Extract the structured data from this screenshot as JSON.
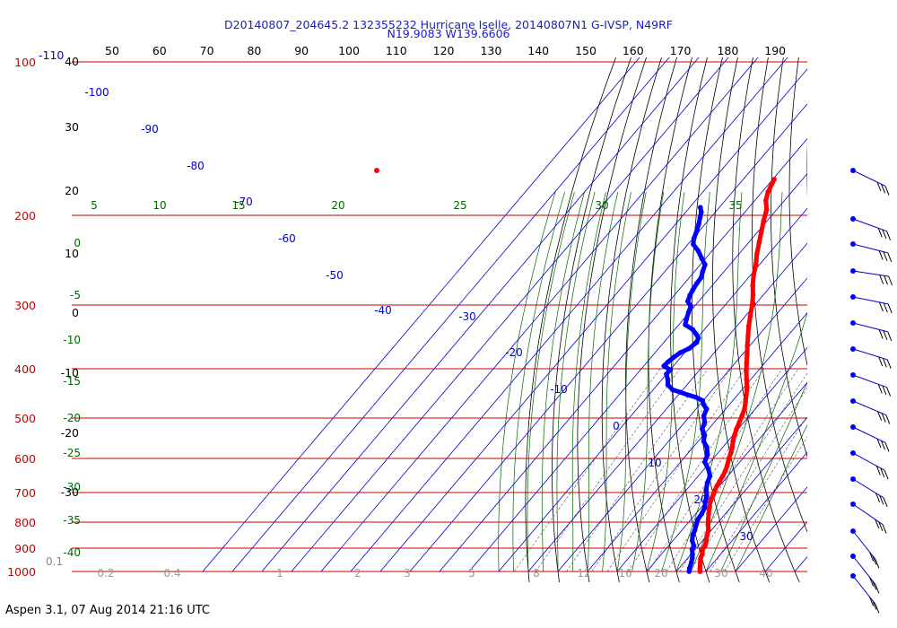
{
  "header": {
    "line1": "D20140807_204645.2 132355232 Hurricane Iselle, 20140807N1 G-IVSP, N49RF",
    "line2": "N19.9083 W139.6606"
  },
  "footer": {
    "text": "Aspen 3.1, 07 Aug 2014  21:16 UTC"
  },
  "colors": {
    "temperature": "#ff0000",
    "dewpoint": "#0000ff",
    "isobar": "#cc0000",
    "isotherm": "#0000cc",
    "dry_adiabat": "#000000",
    "moist_adiabat": "#006600",
    "mixing_ratio": "#555555"
  },
  "chart_data": {
    "type": "line",
    "kind": "skew-T log-P thermodynamic diagram",
    "pressure_ticks": [
      "100",
      "200",
      "300",
      "400",
      "500",
      "600",
      "700",
      "800",
      "900",
      "1000"
    ],
    "top_scale_ticks": [
      "50",
      "60",
      "70",
      "80",
      "90",
      "100",
      "110",
      "120",
      "130",
      "140",
      "150",
      "160",
      "170",
      "180",
      "190"
    ],
    "top_left_label": "-110",
    "left_altitude_ticks": [
      "40",
      "30",
      "20",
      "10",
      "0",
      "-10",
      "-20",
      "-30"
    ],
    "left_moist_ticks": [
      "0",
      "-5",
      "-10",
      "-15",
      "-20",
      "-25",
      "-30",
      "-35",
      "-40"
    ],
    "bottom_left_label": "0.1",
    "isotherm_labels": [
      "-100",
      "-90",
      "-80",
      "-70",
      "-60",
      "-50",
      "-40",
      "-30",
      "-20",
      "-10",
      "0",
      "10",
      "20",
      "30"
    ],
    "moist_adiabat_labels": [
      "5",
      "10",
      "15",
      "20",
      "25",
      "30",
      "35"
    ],
    "mixing_ratio_labels": [
      "0.2",
      "0.4",
      "1",
      "2",
      "3",
      "5",
      "8",
      "12",
      "16",
      "20",
      "30",
      "40"
    ],
    "series": [
      {
        "role": "temperature",
        "unit": "C",
        "points": [
          [
            1000,
            28.0
          ],
          [
            985,
            27.0
          ],
          [
            960,
            25.5
          ],
          [
            940,
            24.3
          ],
          [
            925,
            23.8
          ],
          [
            905,
            22.5
          ],
          [
            890,
            22.3
          ],
          [
            870,
            21.3
          ],
          [
            850,
            20.0
          ],
          [
            830,
            19.0
          ],
          [
            810,
            17.3
          ],
          [
            790,
            15.8
          ],
          [
            770,
            14.3
          ],
          [
            750,
            12.9
          ],
          [
            730,
            11.5
          ],
          [
            710,
            10.6
          ],
          [
            695,
            9.8
          ],
          [
            680,
            9.2
          ],
          [
            665,
            8.7
          ],
          [
            650,
            8.3
          ],
          [
            635,
            7.7
          ],
          [
            620,
            6.8
          ],
          [
            600,
            5.3
          ],
          [
            585,
            4.4
          ],
          [
            570,
            3.2
          ],
          [
            555,
            1.7
          ],
          [
            540,
            0.5
          ],
          [
            525,
            -0.6
          ],
          [
            510,
            -1.5
          ],
          [
            495,
            -2.5
          ],
          [
            480,
            -3.6
          ],
          [
            465,
            -5.3
          ],
          [
            450,
            -7.1
          ],
          [
            435,
            -9.0
          ],
          [
            420,
            -11.4
          ],
          [
            405,
            -13.8
          ],
          [
            390,
            -16.1
          ],
          [
            375,
            -18.4
          ],
          [
            360,
            -20.9
          ],
          [
            345,
            -23.4
          ],
          [
            330,
            -26.0
          ],
          [
            315,
            -28.4
          ],
          [
            300,
            -30.9
          ],
          [
            287,
            -33.4
          ],
          [
            275,
            -36.2
          ],
          [
            262,
            -39.0
          ],
          [
            250,
            -41.2
          ],
          [
            238,
            -44.0
          ],
          [
            226,
            -46.5
          ],
          [
            215,
            -48.9
          ],
          [
            205,
            -51.2
          ],
          [
            195,
            -53.4
          ],
          [
            187,
            -56.3
          ],
          [
            180,
            -58.0
          ],
          [
            170,
            -59.5
          ]
        ]
      },
      {
        "role": "dewpoint",
        "unit": "C",
        "points": [
          [
            1000,
            24.3
          ],
          [
            985,
            23.5
          ],
          [
            960,
            22.5
          ],
          [
            940,
            21.5
          ],
          [
            925,
            20.5
          ],
          [
            905,
            19.0
          ],
          [
            890,
            18.5
          ],
          [
            870,
            16.5
          ],
          [
            850,
            15.2
          ],
          [
            830,
            14.4
          ],
          [
            810,
            13.3
          ],
          [
            790,
            12.3
          ],
          [
            770,
            12.0
          ],
          [
            750,
            11.3
          ],
          [
            730,
            9.8
          ],
          [
            710,
            8.5
          ],
          [
            690,
            6.5
          ],
          [
            670,
            5.0
          ],
          [
            650,
            4.0
          ],
          [
            630,
            1.5
          ],
          [
            610,
            -1.8
          ],
          [
            590,
            -3.0
          ],
          [
            570,
            -5.4
          ],
          [
            555,
            -8.2
          ],
          [
            540,
            -9.6
          ],
          [
            525,
            -12.2
          ],
          [
            510,
            -13.2
          ],
          [
            495,
            -15.4
          ],
          [
            480,
            -16.4
          ],
          [
            470,
            -18.8
          ],
          [
            462,
            -20.2
          ],
          [
            455,
            -23.4
          ],
          [
            450,
            -27.0
          ],
          [
            445,
            -30.0
          ],
          [
            440,
            -33.4
          ],
          [
            430,
            -36.5
          ],
          [
            420,
            -38.0
          ],
          [
            410,
            -40.0
          ],
          [
            402,
            -40.0
          ],
          [
            395,
            -43.2
          ],
          [
            388,
            -43.0
          ],
          [
            380,
            -42.4
          ],
          [
            372,
            -41.5
          ],
          [
            365,
            -39.7
          ],
          [
            355,
            -38.9
          ],
          [
            348,
            -39.6
          ],
          [
            342,
            -41.5
          ],
          [
            335,
            -44.0
          ],
          [
            328,
            -47.8
          ],
          [
            320,
            -49.0
          ],
          [
            310,
            -50.3
          ],
          [
            302,
            -51.2
          ],
          [
            295,
            -53.7
          ],
          [
            287,
            -54.7
          ],
          [
            280,
            -55.3
          ],
          [
            272,
            -55.8
          ],
          [
            265,
            -56.0
          ],
          [
            258,
            -57.2
          ],
          [
            250,
            -58.4
          ],
          [
            243,
            -61.3
          ],
          [
            235,
            -64.6
          ],
          [
            228,
            -68.2
          ],
          [
            222,
            -69.7
          ],
          [
            215,
            -70.8
          ],
          [
            208,
            -72.2
          ],
          [
            202,
            -73.6
          ],
          [
            197,
            -74.8
          ],
          [
            193,
            -76.4
          ]
        ]
      }
    ],
    "wind_barbs": 15
  }
}
